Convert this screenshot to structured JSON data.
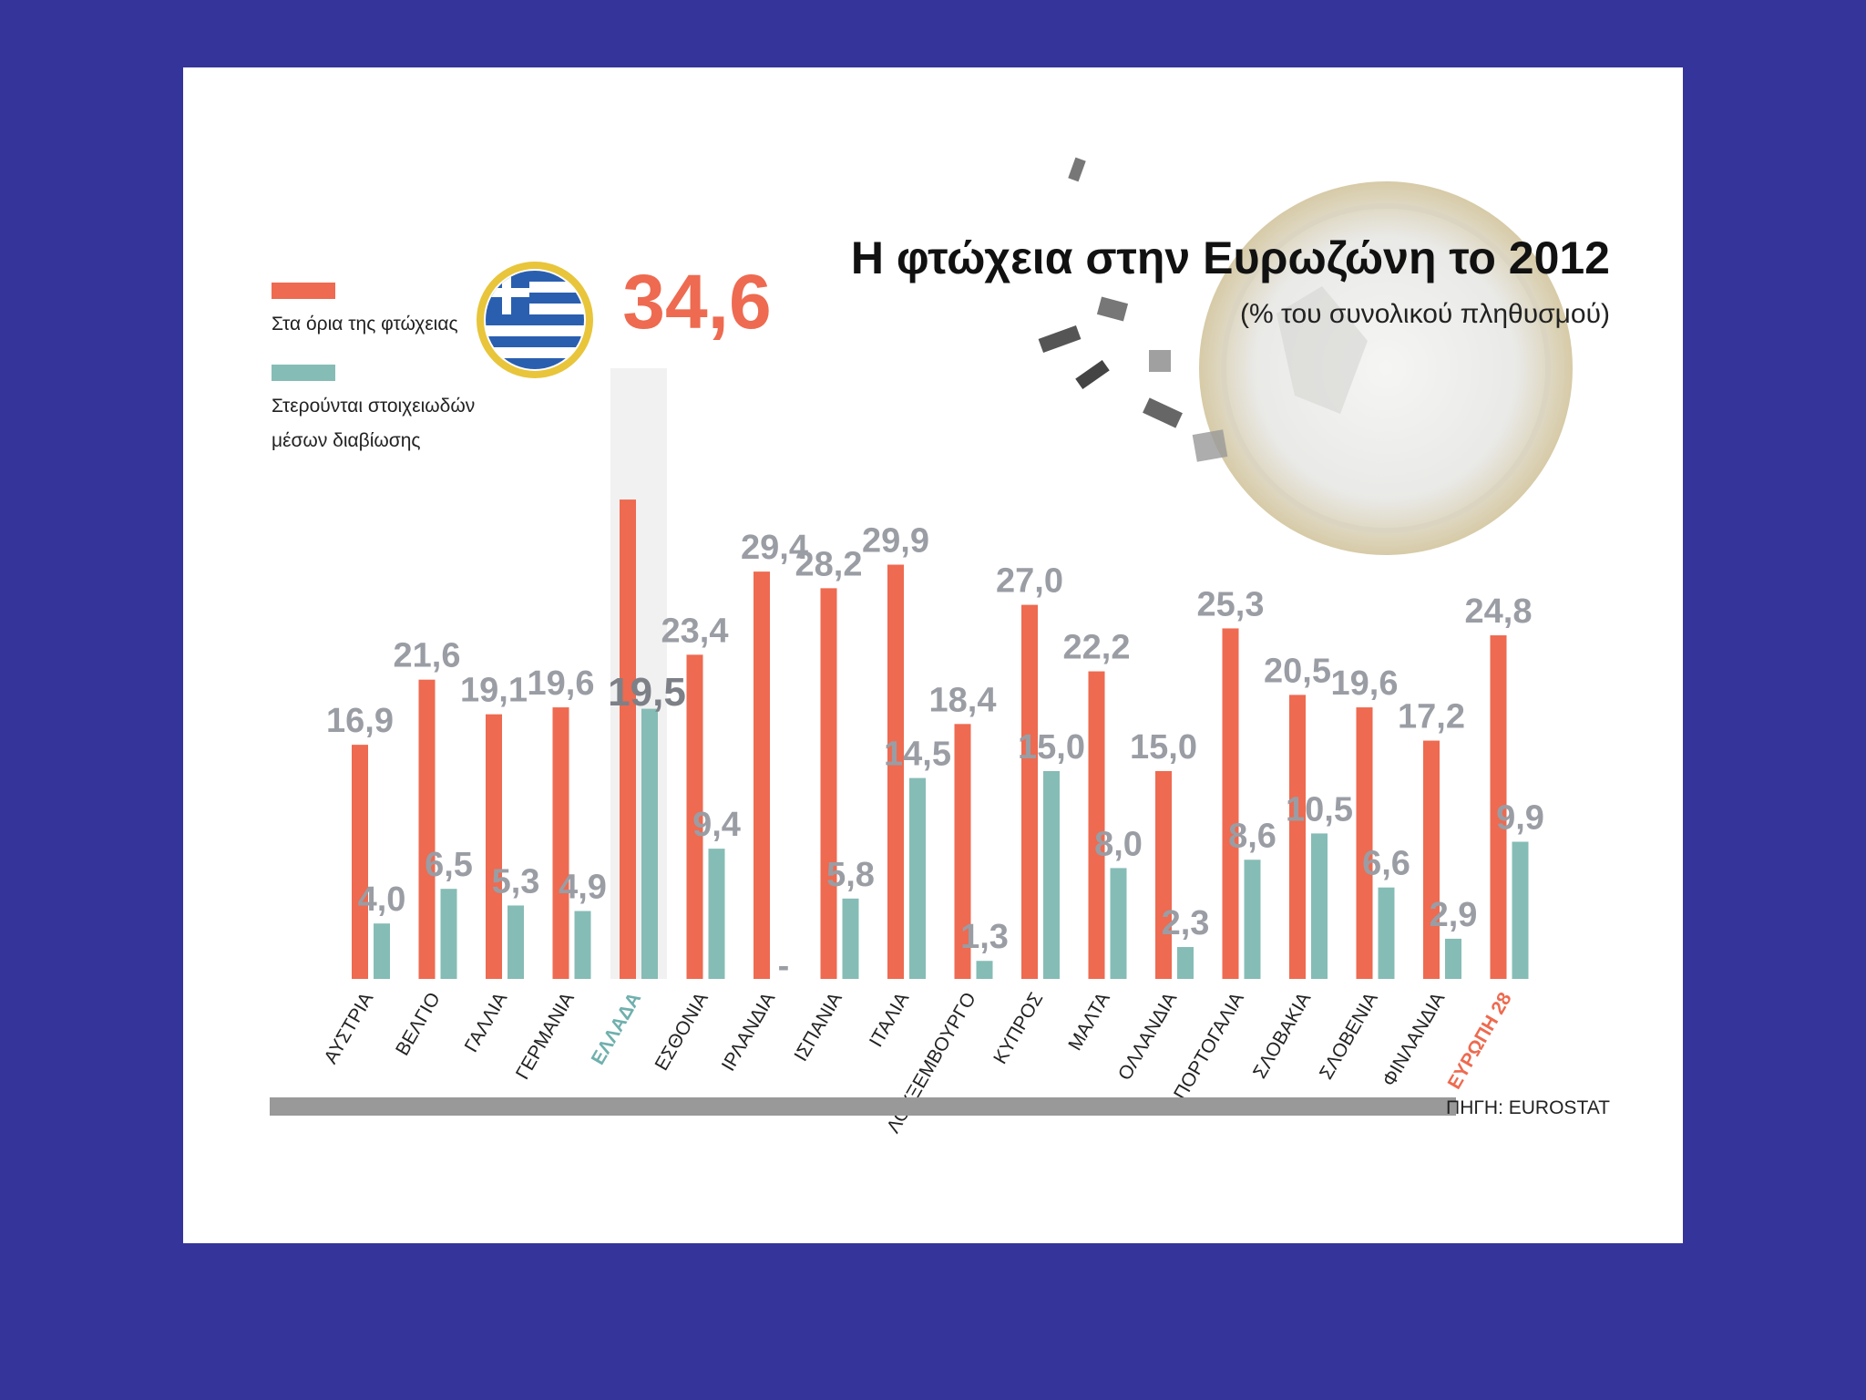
{
  "colors": {
    "background": "#35349b",
    "panel": "#ffffff",
    "poverty_bar": "#ee6a50",
    "deprivation_bar": "#86bcb6",
    "value_label": "#9a9da4",
    "source_bar": "#999999"
  },
  "chart_data": {
    "type": "bar",
    "title": "Η φτώχεια στην Ευρωζώνη το 2012",
    "subtitle": "(% του συνολικού πληθυσμού)",
    "source": "ΠΗΓΗ: EUROSTAT",
    "categories": [
      "ΑΥΣΤΡΙΑ",
      "ΒΕΛΓΙΟ",
      "ΓΑΛΛΙΑ",
      "ΓΕΡΜΑΝΙΑ",
      "ΕΛΛΑΔΑ",
      "ΕΣΘΟΝΙΑ",
      "ΙΡΛΑΝΔΙΑ",
      "ΙΣΠΑΝΙΑ",
      "ΙΤΑΛΙΑ",
      "ΛΟΥΞΕΜΒΟΥΡΓΟ",
      "ΚΥΠΡΟΣ",
      "ΜΑΛΤΑ",
      "ΟΛΛΑΝΔΙΑ",
      "ΠΟΡΤΟΓΑΛΙΑ",
      "ΣΛΟΒΑΚΙΑ",
      "ΣΛΟΒΕΝΙΑ",
      "ΦΙΝΛΑΝΔΙΑ",
      "ΕΥΡΩΠΗ 28"
    ],
    "series": [
      {
        "name": "Στα όρια της φτώχειας",
        "values": [
          16.9,
          21.6,
          19.1,
          19.6,
          34.6,
          23.4,
          29.4,
          28.2,
          29.9,
          18.4,
          27.0,
          22.2,
          15.0,
          25.3,
          20.5,
          19.6,
          17.2,
          24.8
        ],
        "labels": [
          "16,9",
          "21,6",
          "19,1",
          "19,6",
          "34,6",
          "23,4",
          "29,4",
          "28,2",
          "29,9",
          "18,4",
          "27,0",
          "22,2",
          "15,0",
          "25,3",
          "20,5",
          "19,6",
          "17,2",
          "24,8"
        ]
      },
      {
        "name": "Στερούνται στοιχειωδών μέσων διαβίωσης",
        "values": [
          4.0,
          6.5,
          5.3,
          4.9,
          19.5,
          9.4,
          null,
          5.8,
          14.5,
          1.3,
          15.0,
          8.0,
          2.3,
          8.6,
          10.5,
          6.6,
          2.9,
          9.9
        ],
        "labels": [
          "4,0",
          "6,5",
          "5,3",
          "4,9",
          "19,5",
          "9,4",
          "-",
          "5,8",
          "14,5",
          "1,3",
          "15,0",
          "8,0",
          "2,3",
          "8,6",
          "10,5",
          "6,6",
          "2,9",
          "9,9"
        ]
      }
    ],
    "ylim": [
      0,
      36
    ],
    "grid": false,
    "legend_position": "top-left"
  }
}
